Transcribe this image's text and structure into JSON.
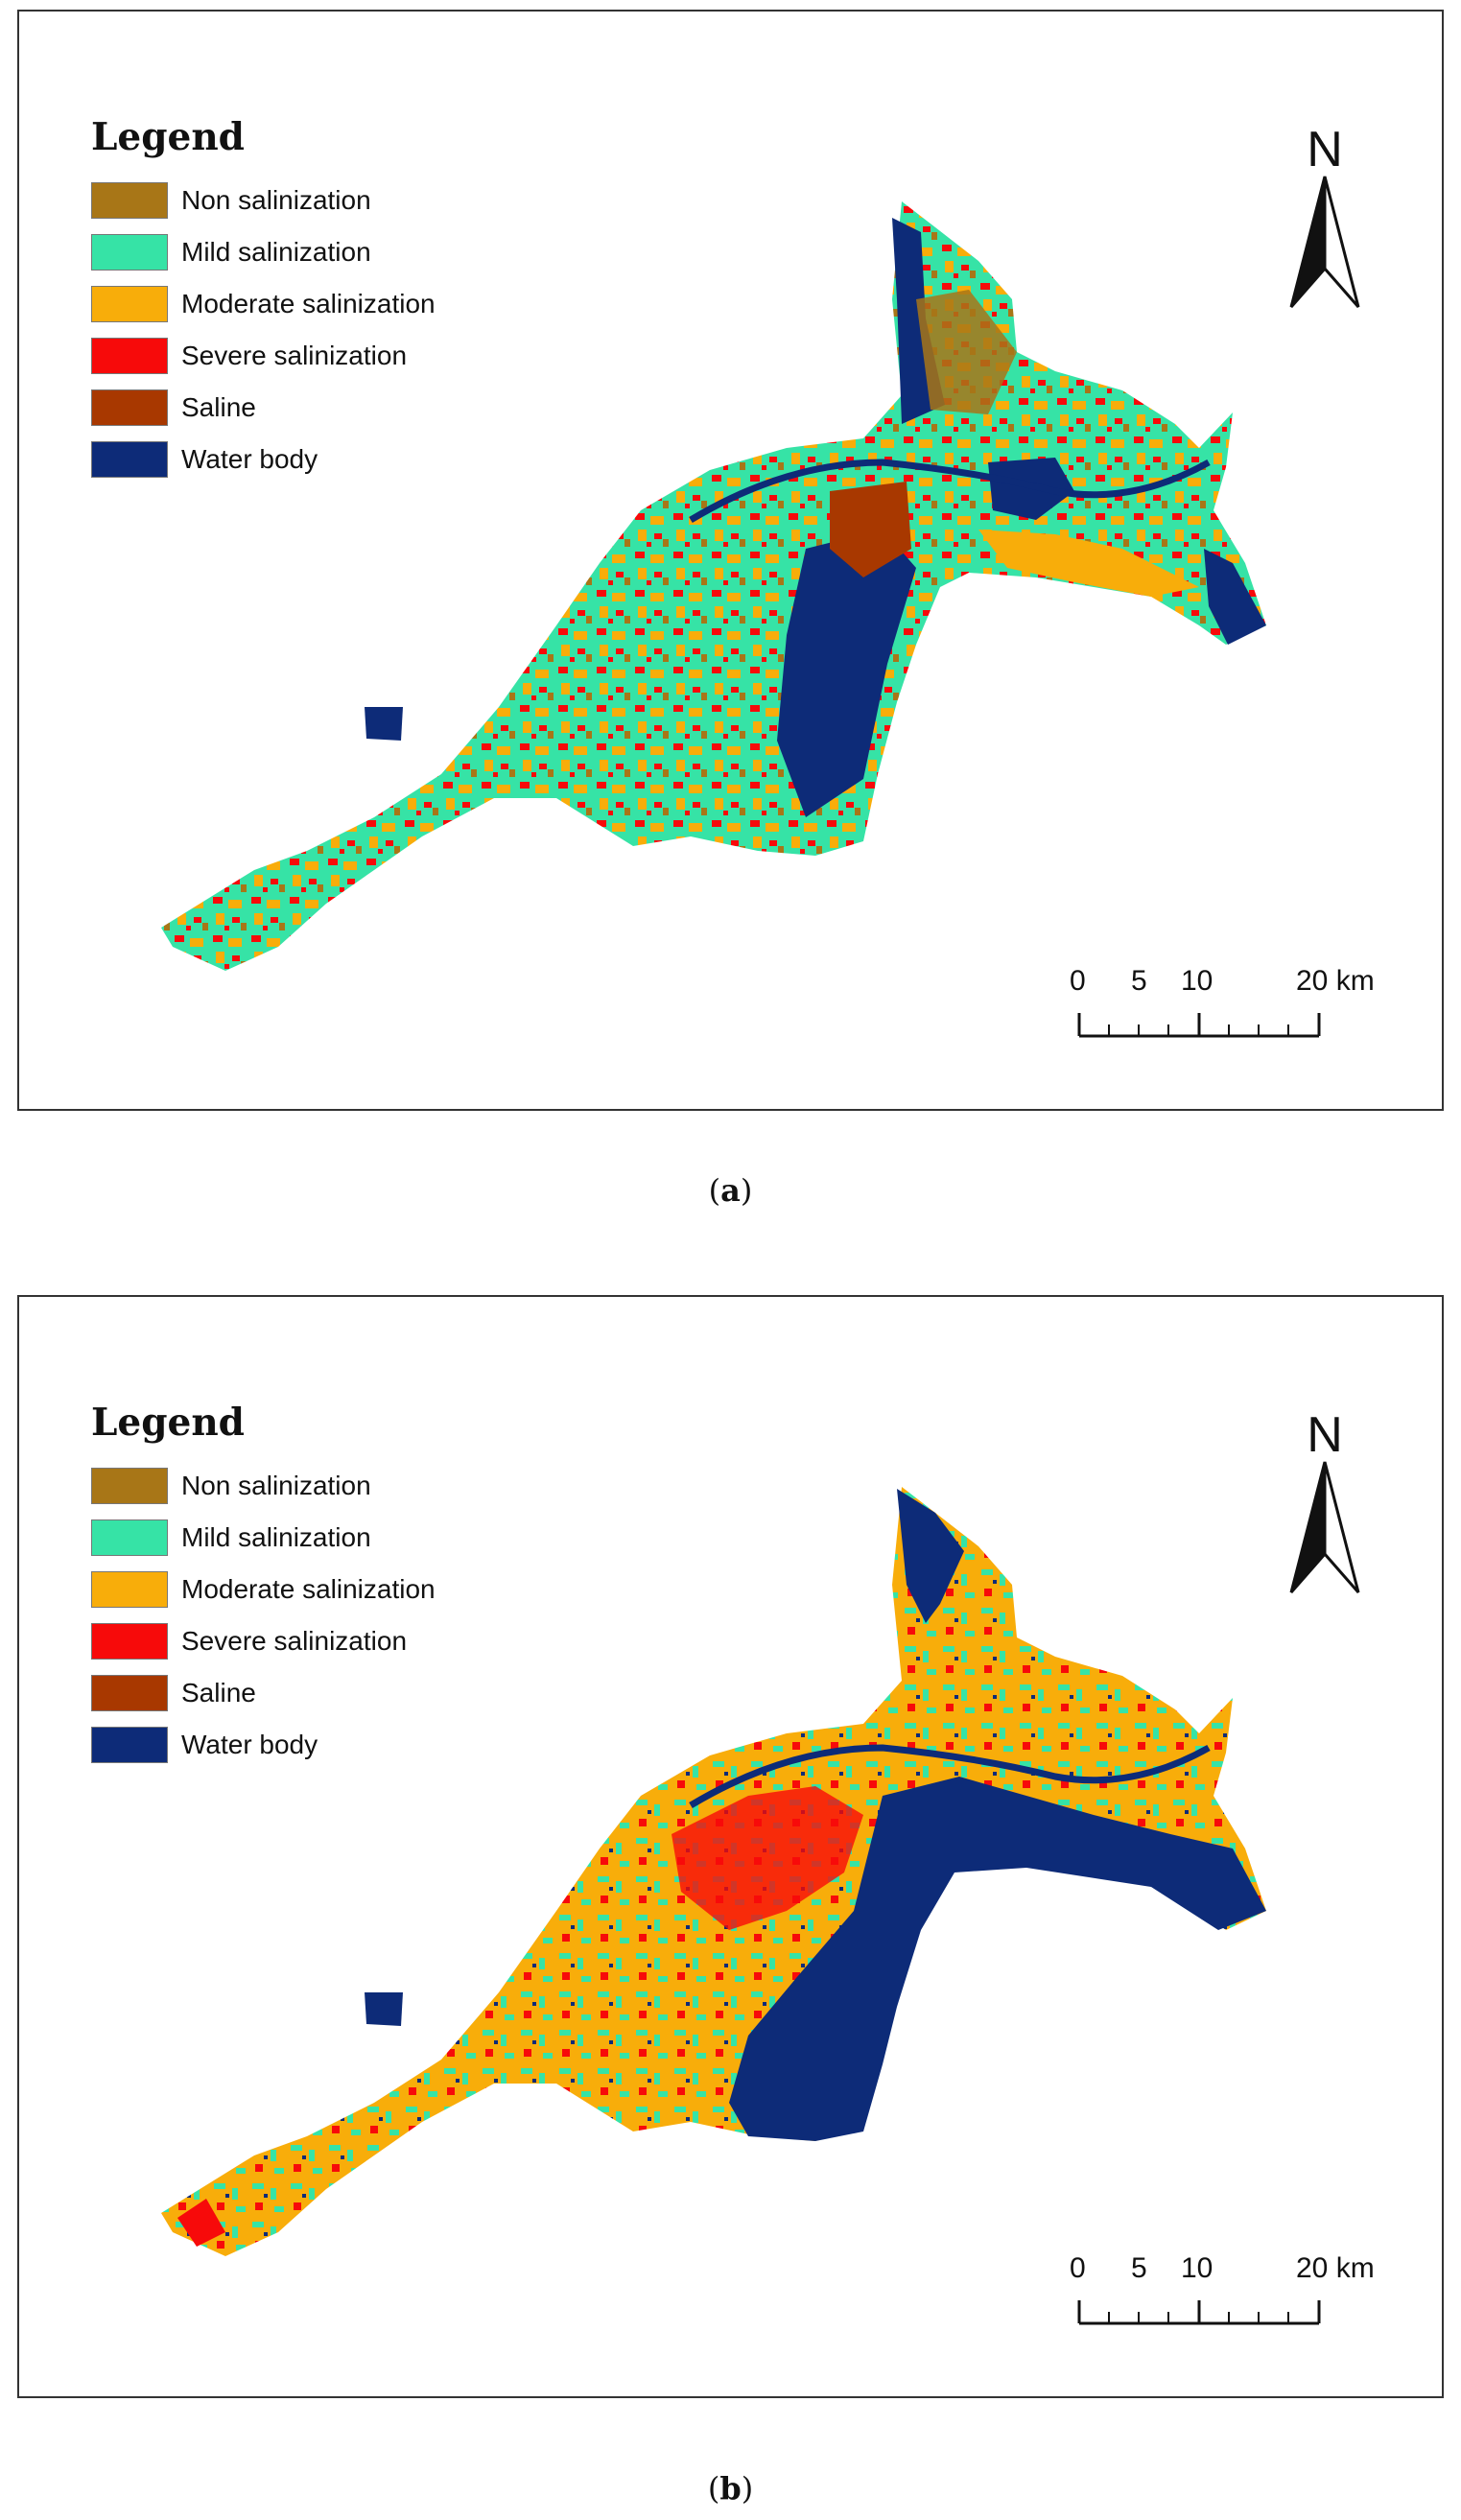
{
  "legend": {
    "title": "Legend",
    "items": [
      {
        "label": "Non salinization",
        "color": "#a87617"
      },
      {
        "label": "Mild salinization",
        "color": "#36e3a6"
      },
      {
        "label": "Moderate salinization",
        "color": "#f8ad0a"
      },
      {
        "label": "Severe salinization",
        "color": "#f70a0a"
      },
      {
        "label": "Saline",
        "color": "#a83800"
      },
      {
        "label": "Water body",
        "color": "#0d2b78"
      }
    ]
  },
  "north_arrow": {
    "letter": "N"
  },
  "scale_bar": {
    "labels": [
      "0",
      "5",
      "10",
      "20 km"
    ]
  },
  "panels": [
    {
      "caption_text": "a",
      "dominant_class": "Mild salinization"
    },
    {
      "caption_text": "b",
      "dominant_class": "Moderate salinization"
    }
  ]
}
